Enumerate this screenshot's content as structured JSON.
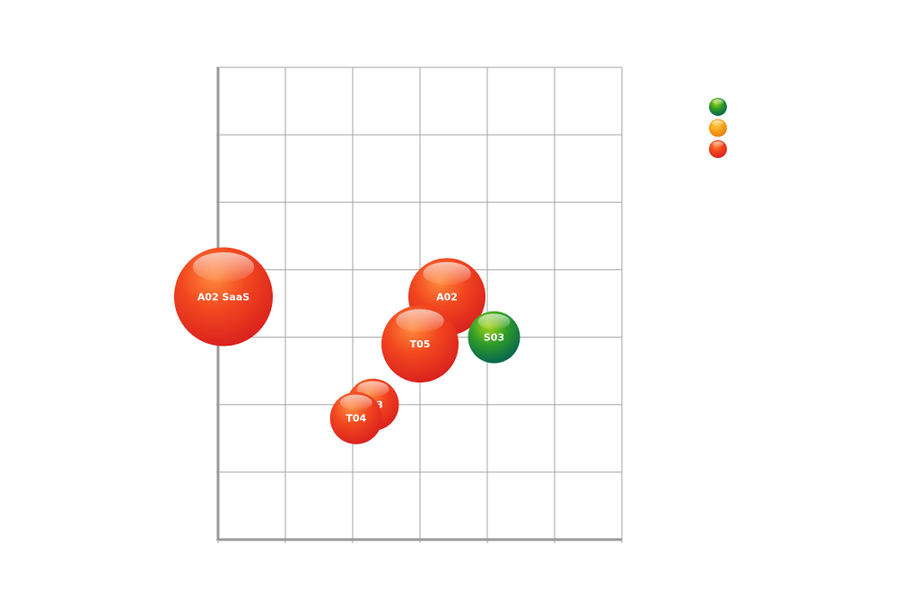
{
  "chart_data": {
    "type": "bubble",
    "title": "",
    "xlabel": "",
    "ylabel": "",
    "xlim": [
      0,
      6
    ],
    "ylim": [
      0,
      7
    ],
    "grid": true,
    "legend_position": "top-right",
    "colors": {
      "red": "#ee3322",
      "orange": "#f7a21b",
      "green": "#33aa22",
      "green_dark": "#006655",
      "grid": "#a6a6a6",
      "axis": "#9a9a9a"
    },
    "legend": [
      {
        "name": "",
        "color": "green"
      },
      {
        "name": "",
        "color": "orange"
      },
      {
        "name": "",
        "color": "red"
      }
    ],
    "points": [
      {
        "label": "A02 SaaS",
        "x": 0.08,
        "y": 3.6,
        "size": 3.6,
        "color": "red"
      },
      {
        "label": "A02",
        "x": 3.4,
        "y": 3.6,
        "size": 2.2,
        "color": "red"
      },
      {
        "label": "S03",
        "x": 4.1,
        "y": 3.0,
        "size": 1.0,
        "color": "green"
      },
      {
        "label": "T05",
        "x": 3.0,
        "y": 2.9,
        "size": 2.2,
        "color": "red"
      },
      {
        "label": "T03",
        "x": 2.3,
        "y": 2.0,
        "size": 1.0,
        "color": "red"
      },
      {
        "label": "T04",
        "x": 2.05,
        "y": 1.8,
        "size": 1.0,
        "color": "red"
      }
    ]
  }
}
